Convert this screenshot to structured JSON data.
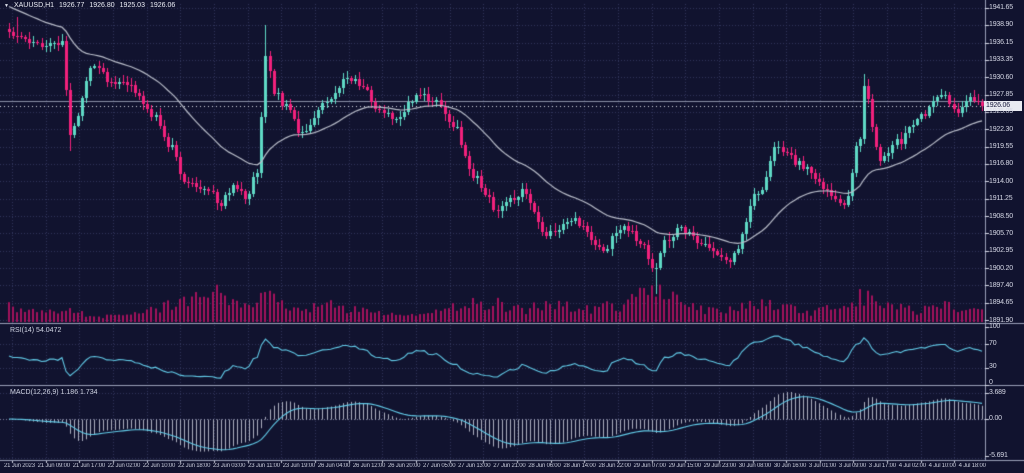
{
  "titlebar": {
    "symbol_label": "XAUUSD,H1",
    "open": "1926.77",
    "high": "1926.80",
    "low": "1925.03",
    "close": "1926.06"
  },
  "price_axis": {
    "ticks": [
      "1941.65",
      "1938.90",
      "1936.15",
      "1933.35",
      "1930.60",
      "1927.85",
      "1925.05",
      "1922.30",
      "1919.55",
      "1916.80",
      "1914.00",
      "1911.25",
      "1908.50",
      "1905.70",
      "1902.95",
      "1900.20",
      "1897.40",
      "1894.65",
      "1891.90"
    ],
    "current_price": "1926.06"
  },
  "rsi": {
    "label": "RSI(14) 54.0472",
    "value": 54.0472,
    "scale": [
      "100",
      "70",
      "30",
      "0"
    ],
    "levels": [
      70,
      30
    ]
  },
  "macd": {
    "label": "MACD(12,26,9) 1.186 1.734",
    "macd_value": 1.186,
    "signal_value": 1.734,
    "scale": [
      "3.689",
      "0.00",
      "-5.691"
    ]
  },
  "time_axis": {
    "labels": [
      "21 Jun 2023",
      "21 Jun 09:00",
      "21 Jun 17:00",
      "22 Jun 02:00",
      "22 Jun 10:00",
      "22 Jun 18:00",
      "23 Jun 03:00",
      "23 Jun 11:00",
      "23 Jun 19:00",
      "26 Jun 04:00",
      "26 Jun 12:00",
      "26 Jun 20:00",
      "27 Jun 05:00",
      "27 Jun 13:00",
      "27 Jun 21:00",
      "28 Jun 06:00",
      "28 Jun 14:00",
      "28 Jun 22:00",
      "29 Jun 07:00",
      "29 Jun 15:00",
      "29 Jun 23:00",
      "30 Jun 08:00",
      "30 Jun 16:00",
      "3 Jul 01:00",
      "3 Jul 09:00",
      "3 Jul 17:00",
      "4 Jul 02:00",
      "4 Jul 10:00",
      "4 Jul 18:00"
    ]
  },
  "colors": {
    "background": "#11132f",
    "grid": "#31365c",
    "bull": "#5fd9c5",
    "bear": "#f2217c",
    "ma_line": "#b9bdc9",
    "volume": "#a3125c",
    "rsi_line": "#62cbe8",
    "macd_histogram": "#c9ccd8",
    "macd_signal": "#62cbe8",
    "axis_text": "#d6d8e6",
    "divider": "#9aa0b8",
    "hline": "#8a8fa6",
    "current_price_box_bg": "#e9ebf2",
    "current_price_box_text": "#14163a"
  },
  "chart_data": {
    "type": "candlestick",
    "title": "XAUUSD,H1 1926.77 1926.80 1925.03 1926.06",
    "symbol": "XAUUSD",
    "timeframe": "H1",
    "num_bars": 240,
    "price_axis_range": [
      1891.9,
      1941.65
    ],
    "last_close": 1926.06,
    "hline_price": 1926.87,
    "price_anchors": [
      [
        0,
        1937.5
      ],
      [
        5,
        1936.3
      ],
      [
        10,
        1935.6
      ],
      [
        13,
        1935.8
      ],
      [
        15,
        1921.8
      ],
      [
        17,
        1925.0
      ],
      [
        20,
        1932.3
      ],
      [
        25,
        1930.2
      ],
      [
        30,
        1929.0
      ],
      [
        35,
        1924.5
      ],
      [
        40,
        1919.5
      ],
      [
        43,
        1914.2
      ],
      [
        48,
        1913.0
      ],
      [
        52,
        1910.6
      ],
      [
        55,
        1913.5
      ],
      [
        58,
        1911.6
      ],
      [
        61,
        1915.0
      ],
      [
        63,
        1934.0
      ],
      [
        65,
        1928.5
      ],
      [
        68,
        1925.8
      ],
      [
        72,
        1921.6
      ],
      [
        77,
        1926.0
      ],
      [
        83,
        1930.6
      ],
      [
        87,
        1929.2
      ],
      [
        90,
        1925.6
      ],
      [
        95,
        1924.2
      ],
      [
        101,
        1928.0
      ],
      [
        105,
        1926.4
      ],
      [
        109,
        1923.0
      ],
      [
        114,
        1914.6
      ],
      [
        120,
        1909.6
      ],
      [
        126,
        1912.2
      ],
      [
        132,
        1905.6
      ],
      [
        138,
        1908.2
      ],
      [
        146,
        1903.4
      ],
      [
        151,
        1907.0
      ],
      [
        155,
        1904.2
      ],
      [
        159,
        1900.0
      ],
      [
        161,
        1904.5
      ],
      [
        165,
        1906.2
      ],
      [
        170,
        1904.0
      ],
      [
        177,
        1901.6
      ],
      [
        184,
        1912.0
      ],
      [
        189,
        1919.6
      ],
      [
        194,
        1917.0
      ],
      [
        199,
        1913.4
      ],
      [
        205,
        1909.8
      ],
      [
        209,
        1921.0
      ],
      [
        210,
        1928.6
      ],
      [
        214,
        1917.6
      ],
      [
        218,
        1920.2
      ],
      [
        224,
        1924.6
      ],
      [
        229,
        1928.4
      ],
      [
        233,
        1925.4
      ],
      [
        237,
        1927.4
      ],
      [
        239,
        1926.06
      ]
    ],
    "wick_events": [
      {
        "bar": 2,
        "high_extra": 2.2
      },
      {
        "bar": 15,
        "low_extra": 2.0
      },
      {
        "bar": 63,
        "high_extra": 3.8
      },
      {
        "bar": 159,
        "low_extra": 3.8
      },
      {
        "bar": 210,
        "high_extra": 1.6
      }
    ],
    "volume_anchors": [
      [
        0,
        0.5
      ],
      [
        6,
        0.3
      ],
      [
        14,
        0.35
      ],
      [
        22,
        0.18
      ],
      [
        30,
        0.22
      ],
      [
        40,
        0.5
      ],
      [
        47,
        0.75
      ],
      [
        52,
        0.9
      ],
      [
        57,
        0.5
      ],
      [
        63,
        0.85
      ],
      [
        70,
        0.45
      ],
      [
        80,
        0.5
      ],
      [
        88,
        0.32
      ],
      [
        96,
        0.2
      ],
      [
        103,
        0.3
      ],
      [
        110,
        0.5
      ],
      [
        118,
        0.6
      ],
      [
        126,
        0.38
      ],
      [
        133,
        0.55
      ],
      [
        141,
        0.4
      ],
      [
        149,
        0.5
      ],
      [
        157,
        0.85
      ],
      [
        160,
        1.0
      ],
      [
        166,
        0.5
      ],
      [
        173,
        0.33
      ],
      [
        181,
        0.5
      ],
      [
        189,
        0.55
      ],
      [
        196,
        0.3
      ],
      [
        204,
        0.45
      ],
      [
        210,
        0.8
      ],
      [
        217,
        0.45
      ],
      [
        224,
        0.35
      ],
      [
        229,
        0.55
      ],
      [
        234,
        0.4
      ],
      [
        239,
        0.3
      ]
    ],
    "indicators": {
      "ma": {
        "type": "moving-average",
        "period": 30
      },
      "rsi": {
        "period": 14,
        "last_value": 54.0472,
        "levels": [
          70,
          30
        ],
        "scale": [
          0,
          100
        ]
      },
      "macd": {
        "fast": 12,
        "slow": 26,
        "signal": 9,
        "last_macd": 1.186,
        "last_signal": 1.734
      }
    }
  }
}
